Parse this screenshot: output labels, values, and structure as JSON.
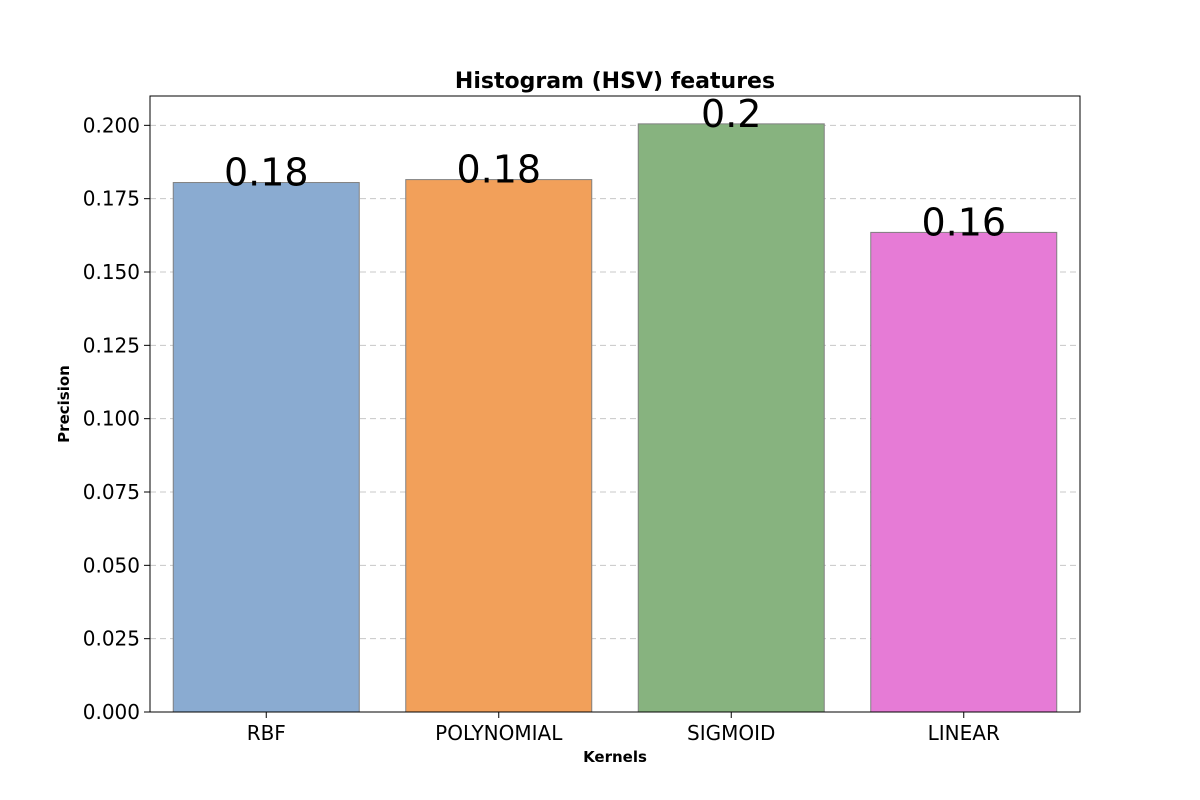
{
  "chart_data": {
    "type": "bar",
    "title": "Histogram (HSV) features",
    "xlabel": "Kernels",
    "ylabel": "Precision",
    "categories": [
      "RBF",
      "POLYNOMIAL",
      "SIGMOID",
      "LINEAR"
    ],
    "values": [
      0.1805,
      0.1815,
      0.2005,
      0.1635
    ],
    "data_labels": [
      "0.18",
      "0.18",
      "0.2",
      "0.16"
    ],
    "colors": [
      "#8aabd1",
      "#f2a05a",
      "#87b37f",
      "#e67bd6"
    ],
    "ylim": [
      0,
      0.21
    ],
    "yticks": [
      0.0,
      0.025,
      0.05,
      0.075,
      0.1,
      0.125,
      0.15,
      0.175,
      0.2
    ],
    "ytick_labels": [
      "0.000",
      "0.025",
      "0.050",
      "0.075",
      "0.100",
      "0.125",
      "0.150",
      "0.175",
      "0.200"
    ],
    "grid": true
  }
}
